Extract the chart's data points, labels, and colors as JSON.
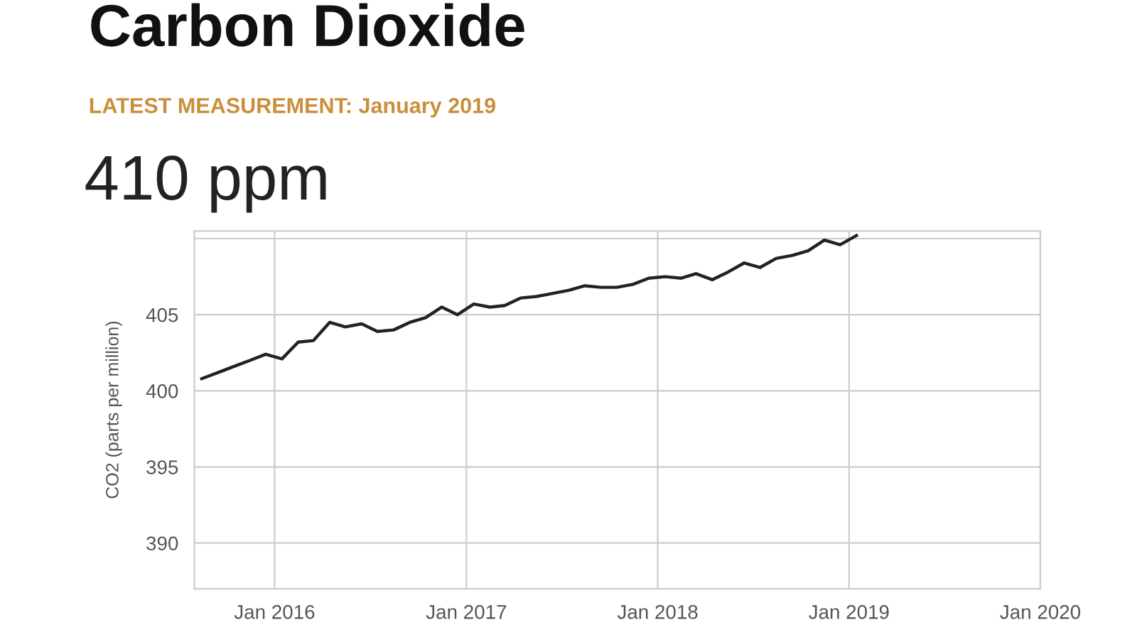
{
  "chart_data": {
    "type": "line",
    "title": "Carbon Dioxide",
    "subtitle": "LATEST MEASUREMENT: January 2019",
    "annotations": [
      "410 ppm"
    ],
    "ylabel": "CO2 (parts per million)",
    "x": [
      "2015-08-15",
      "2015-09-15",
      "2015-10-15",
      "2015-11-15",
      "2015-12-15",
      "2016-01-15",
      "2016-02-15",
      "2016-03-15",
      "2016-04-15",
      "2016-05-15",
      "2016-06-15",
      "2016-07-15",
      "2016-08-15",
      "2016-09-15",
      "2016-10-15",
      "2016-11-15",
      "2016-12-15",
      "2017-01-15",
      "2017-02-15",
      "2017-03-15",
      "2017-04-15",
      "2017-05-15",
      "2017-06-15",
      "2017-07-15",
      "2017-08-15",
      "2017-09-15",
      "2017-10-15",
      "2017-11-15",
      "2017-12-15",
      "2018-01-15",
      "2018-02-15",
      "2018-03-15",
      "2018-04-15",
      "2018-05-15",
      "2018-06-15",
      "2018-07-15",
      "2018-08-15",
      "2018-09-15",
      "2018-10-15",
      "2018-11-15",
      "2018-12-15",
      "2019-01-15"
    ],
    "series": [
      {
        "color": "#222222",
        "values": [
          400.8,
          401.2,
          401.6,
          402.0,
          402.4,
          402.1,
          403.2,
          403.3,
          404.5,
          404.2,
          404.4,
          403.9,
          404.0,
          404.5,
          404.8,
          405.5,
          405.0,
          405.7,
          405.5,
          405.6,
          406.1,
          406.2,
          406.4,
          406.6,
          406.9,
          406.8,
          406.8,
          407.0,
          407.4,
          407.5,
          407.4,
          407.7,
          407.3,
          407.8,
          408.4,
          408.1,
          408.7,
          408.9,
          409.2,
          409.9,
          409.6,
          410.2
        ]
      }
    ],
    "xlim": [
      "2015-08-01",
      "2020-01-01"
    ],
    "xticks": [
      {
        "value": "2016-01-01",
        "label": "Jan 2016"
      },
      {
        "value": "2017-01-01",
        "label": "Jan 2017"
      },
      {
        "value": "2018-01-01",
        "label": "Jan 2018"
      },
      {
        "value": "2019-01-01",
        "label": "Jan 2019"
      },
      {
        "value": "2020-01-01",
        "label": "Jan 2020"
      }
    ],
    "ylim": [
      387,
      410.5
    ],
    "yticks": [
      390,
      395,
      400,
      405,
      {
        "value": 410,
        "label": null
      }
    ],
    "grid": true,
    "marker": "none",
    "line_style": "solid"
  }
}
